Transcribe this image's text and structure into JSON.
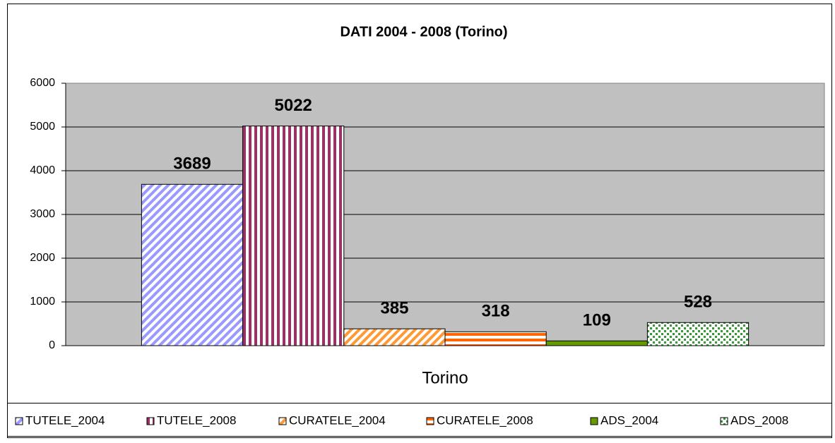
{
  "chart_data": {
    "type": "bar",
    "title": "DATI 2004 - 2008 (Torino)",
    "categories": [
      "Torino"
    ],
    "series": [
      {
        "name": "TUTELE_2004",
        "color": "#9999ff",
        "pattern": "diagonal",
        "values": [
          3689
        ]
      },
      {
        "name": "TUTELE_2008",
        "color": "#993366",
        "pattern": "vertical",
        "values": [
          5022
        ]
      },
      {
        "name": "CURATELE_2004",
        "color": "#ff9933",
        "pattern": "diagonal",
        "values": [
          385
        ]
      },
      {
        "name": "CURATELE_2008",
        "color": "#ff6600",
        "pattern": "horizontal",
        "values": [
          318
        ]
      },
      {
        "name": "ADS_2004",
        "color": "#669900",
        "pattern": "solid",
        "values": [
          109
        ]
      },
      {
        "name": "ADS_2008",
        "color": "#339933",
        "pattern": "dots",
        "values": [
          528
        ]
      }
    ],
    "ylim": [
      0,
      6000
    ],
    "yticks": [
      0,
      1000,
      2000,
      3000,
      4000,
      5000,
      6000
    ],
    "grid": true,
    "legend": "bottom"
  }
}
